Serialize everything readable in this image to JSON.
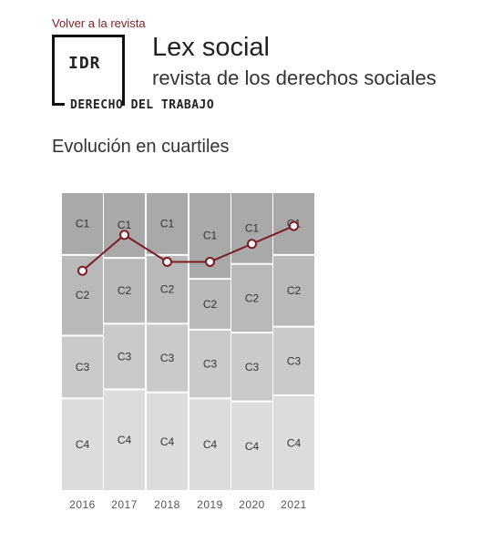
{
  "header": {
    "back_link": "Volver a la revista",
    "logo_text": "IDR",
    "logo_subtitle": "DERECHO DEL TRABAJO",
    "journal_title": "Lex social",
    "journal_subtitle": "revista de los derechos sociales",
    "section_title": "Evolución en cuartiles"
  },
  "colors": {
    "accent": "#7a1e24",
    "C1": "#a9a9a9",
    "C2": "#b9b9b9",
    "C3": "#cacaca",
    "C4": "#dcdcdc"
  },
  "chart_data": {
    "type": "line",
    "title": "",
    "xlabel": "",
    "ylabel": "",
    "quartile_labels": [
      "C1",
      "C2",
      "C3",
      "C4"
    ],
    "years": [
      {
        "year": "2016",
        "C1": 0.21,
        "C2": 0.27,
        "C3": 0.21,
        "C4": 0.31,
        "position": 0.26
      },
      {
        "year": "2017",
        "C1": 0.22,
        "C2": 0.22,
        "C3": 0.22,
        "C4": 0.34,
        "position": 0.14
      },
      {
        "year": "2018",
        "C1": 0.21,
        "C2": 0.23,
        "C3": 0.23,
        "C4": 0.33,
        "position": 0.23
      },
      {
        "year": "2019",
        "C1": 0.29,
        "C2": 0.17,
        "C3": 0.23,
        "C4": 0.31,
        "position": 0.23
      },
      {
        "year": "2020",
        "C1": 0.24,
        "C2": 0.23,
        "C3": 0.23,
        "C4": 0.3,
        "position": 0.17
      },
      {
        "year": "2021",
        "C1": 0.21,
        "C2": 0.24,
        "C3": 0.23,
        "C4": 0.32,
        "position": 0.11
      }
    ]
  }
}
